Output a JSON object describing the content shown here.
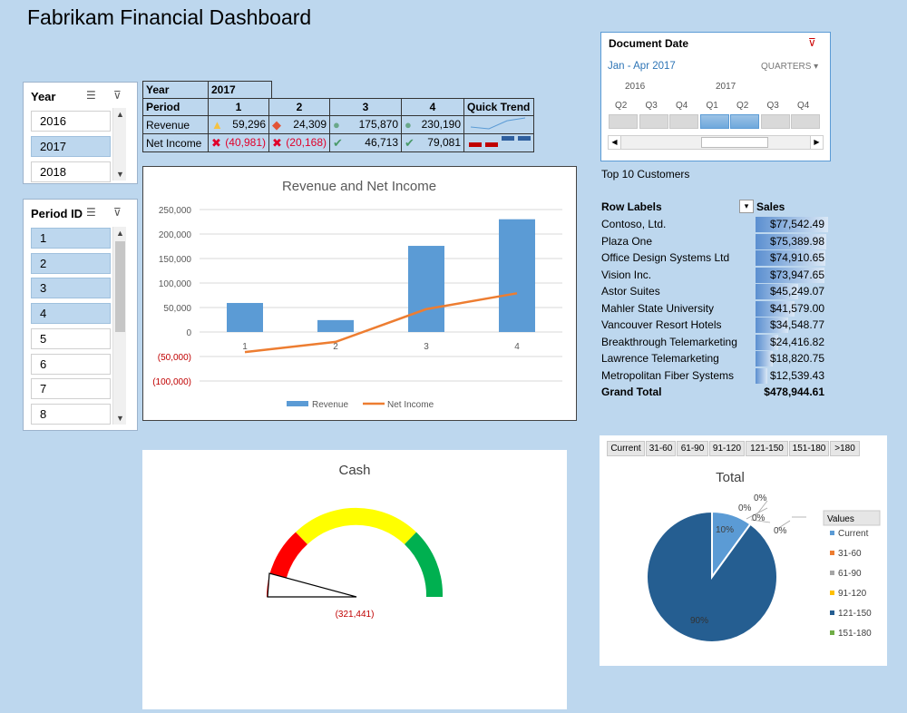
{
  "dashboard_title": "Fabrikam Financial Dashboard",
  "year_slicer": {
    "title": "Year",
    "items": [
      {
        "label": "2016",
        "selected": false
      },
      {
        "label": "2017",
        "selected": true
      },
      {
        "label": "2018",
        "selected": false
      }
    ]
  },
  "period_slicer": {
    "title": "Period ID",
    "items": [
      {
        "label": "1",
        "selected": true
      },
      {
        "label": "2",
        "selected": true
      },
      {
        "label": "3",
        "selected": true
      },
      {
        "label": "4",
        "selected": true
      },
      {
        "label": "5",
        "selected": false
      },
      {
        "label": "6",
        "selected": false
      },
      {
        "label": "7",
        "selected": false
      },
      {
        "label": "8",
        "selected": false
      }
    ]
  },
  "pivot_grid": {
    "year_label": "Year",
    "year_value": "2017",
    "period_label": "Period",
    "periods": [
      "1",
      "2",
      "3",
      "4"
    ],
    "quick_trend_label": "Quick Trend",
    "rows": [
      {
        "label": "Revenue",
        "cells": [
          {
            "icon": "triangle-warning-icon",
            "value": "59,296",
            "color": "#000000"
          },
          {
            "icon": "diamond-icon",
            "value": "24,309",
            "color": "#000000"
          },
          {
            "icon": "circle-icon",
            "value": "175,870",
            "color": "#000000"
          },
          {
            "icon": "circle-icon",
            "value": "230,190",
            "color": "#000000"
          }
        ]
      },
      {
        "label": "Net Income",
        "cells": [
          {
            "icon": "x-mark-icon",
            "value": "(40,981)",
            "color": "#e0002a"
          },
          {
            "icon": "x-mark-icon",
            "value": "(20,168)",
            "color": "#e0002a"
          },
          {
            "icon": "check-mark-icon",
            "value": "46,713",
            "color": "#000000"
          },
          {
            "icon": "check-mark-icon",
            "value": "79,081",
            "color": "#000000"
          }
        ]
      }
    ]
  },
  "chart_data": [
    {
      "type": "bar",
      "title": "Revenue and Net Income",
      "categories": [
        "1",
        "2",
        "3",
        "4"
      ],
      "series": [
        {
          "name": "Revenue",
          "type": "bar",
          "values": [
            59296,
            24309,
            175870,
            230190
          ],
          "color": "#5b9bd5"
        },
        {
          "name": "Net Income",
          "type": "line",
          "values": [
            -40981,
            -20168,
            46713,
            79081
          ],
          "color": "#ed7d31"
        }
      ],
      "ylim": [
        -100000,
        250000
      ],
      "y_ticks": [
        "250,000",
        "200,000",
        "150,000",
        "100,000",
        "50,000",
        "0",
        "(50,000)",
        "(100,000)"
      ],
      "legend": "bottom",
      "grid": true
    },
    {
      "type": "pie",
      "title": "Total",
      "legend_title": "Values",
      "categories": [
        "Current",
        "31-60",
        "61-90",
        "91-120",
        "121-150",
        "151-180"
      ],
      "values": [
        10,
        0,
        0,
        0,
        90,
        0
      ],
      "labels": [
        "10%",
        "0%",
        "0%",
        "0%",
        "90%",
        "0%"
      ],
      "colors": [
        "#5b9bd5",
        "#ed7d31",
        "#a5a5a5",
        "#ffc000",
        "#255e91",
        "#70ad47"
      ]
    }
  ],
  "doc_date_slicer": {
    "title": "Document Date",
    "range_label": "Jan - Apr 2017",
    "level_label": "QUARTERS",
    "years": [
      "2016",
      "2017"
    ],
    "quarters": [
      "Q2",
      "Q3",
      "Q4",
      "Q1",
      "Q2",
      "Q3",
      "Q4"
    ]
  },
  "top_customers": {
    "caption": "Top 10 Customers",
    "col_label": "Row Labels",
    "col_sales": "Sales",
    "rows": [
      {
        "name": "Contoso, Ltd.",
        "sales": "$77,542.49",
        "amount": 77542.49
      },
      {
        "name": "Plaza One",
        "sales": "$75,389.98",
        "amount": 75389.98
      },
      {
        "name": "Office Design Systems Ltd",
        "sales": "$74,910.65",
        "amount": 74910.65
      },
      {
        "name": "Vision Inc.",
        "sales": "$73,947.65",
        "amount": 73947.65
      },
      {
        "name": "Astor Suites",
        "sales": "$45,249.07",
        "amount": 45249.07
      },
      {
        "name": "Mahler State University",
        "sales": "$41,579.00",
        "amount": 41579.0
      },
      {
        "name": "Vancouver Resort Hotels",
        "sales": "$34,548.77",
        "amount": 34548.77
      },
      {
        "name": "Breakthrough Telemarketing",
        "sales": "$24,416.82",
        "amount": 24416.82
      },
      {
        "name": "Lawrence Telemarketing",
        "sales": "$18,820.75",
        "amount": 18820.75
      },
      {
        "name": "Metropolitan Fiber Systems",
        "sales": "$12,539.43",
        "amount": 12539.43
      }
    ],
    "total_label": "Grand Total",
    "total_value": "$478,944.61"
  },
  "cash_gauge": {
    "title": "Cash",
    "value_label": "(321,441)"
  },
  "aging_buttons": [
    "Current",
    "31-60",
    "61-90",
    "91-120",
    "121-150",
    "151-180",
    ">180"
  ]
}
